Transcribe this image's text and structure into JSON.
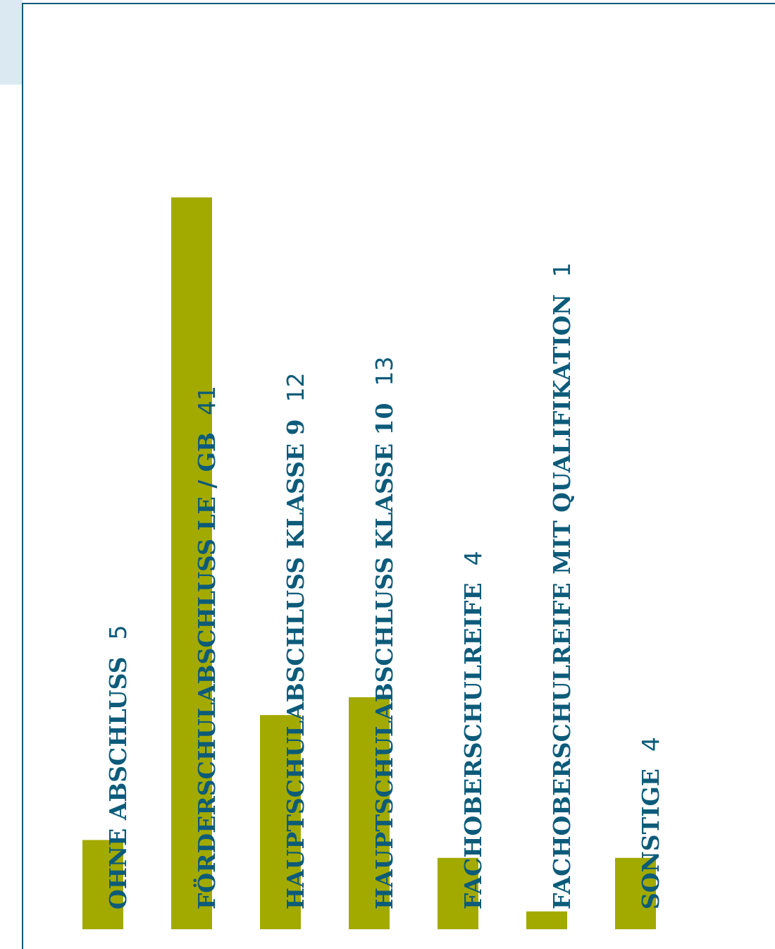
{
  "chart_data": {
    "type": "bar",
    "orientation": "vertical-rotated",
    "categories": [
      "OHNE ABSCHLUSS",
      "FÖRDERSCHULABSCHLUSS LE / GB",
      "HAUPTSCHULABSCHLUSS KLASSE 9",
      "HAUPTSCHULABSCHLUSS KLASSE 10",
      "FACHOBERSCHULREIFE",
      "FACHOBERSCHULREIFE MIT QUALIFIKATION",
      "SONSTIGE"
    ],
    "values": [
      5,
      41,
      12,
      13,
      4,
      1,
      4
    ],
    "value_labels": [
      "5",
      "41",
      "12",
      "13",
      "4",
      "1",
      "4"
    ],
    "ylim": [
      0,
      41
    ],
    "grid": false,
    "bar_color": "#a2aa00",
    "text_color": "#0d5b7a"
  },
  "colors": {
    "accent": "#0d5b7a",
    "corner_fill": "#dbe9f3"
  }
}
